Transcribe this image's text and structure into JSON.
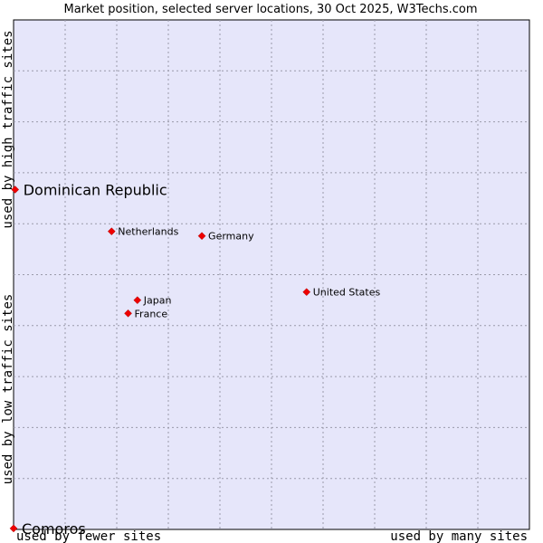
{
  "chart_data": {
    "type": "scatter",
    "title": "Market position, selected server locations, 30 Oct 2025, W3Techs.com",
    "xlabel_left": "used by fewer sites",
    "xlabel_right": "used by many sites",
    "ylabel_bottom": "used by low traffic sites",
    "ylabel_top": "used by high traffic sites",
    "xlim": [
      0,
      100
    ],
    "ylim": [
      0,
      100
    ],
    "grid": true,
    "series": [
      {
        "name": "server locations",
        "points": [
          {
            "label": "Dominican Republic",
            "x": 0.3,
            "y": 66.7,
            "highlight": true
          },
          {
            "label": "Netherlands",
            "x": 19.0,
            "y": 58.5,
            "highlight": false
          },
          {
            "label": "Germany",
            "x": 36.5,
            "y": 57.6,
            "highlight": false
          },
          {
            "label": "United States",
            "x": 56.8,
            "y": 46.6,
            "highlight": false
          },
          {
            "label": "Japan",
            "x": 24.0,
            "y": 45.0,
            "highlight": false
          },
          {
            "label": "France",
            "x": 22.2,
            "y": 42.4,
            "highlight": false
          },
          {
            "label": "Comoros",
            "x": 0.0,
            "y": 0.2,
            "highlight": true
          }
        ]
      }
    ],
    "colors": {
      "plot_background": "#e6e6fa",
      "marker": "#ee0000"
    }
  }
}
